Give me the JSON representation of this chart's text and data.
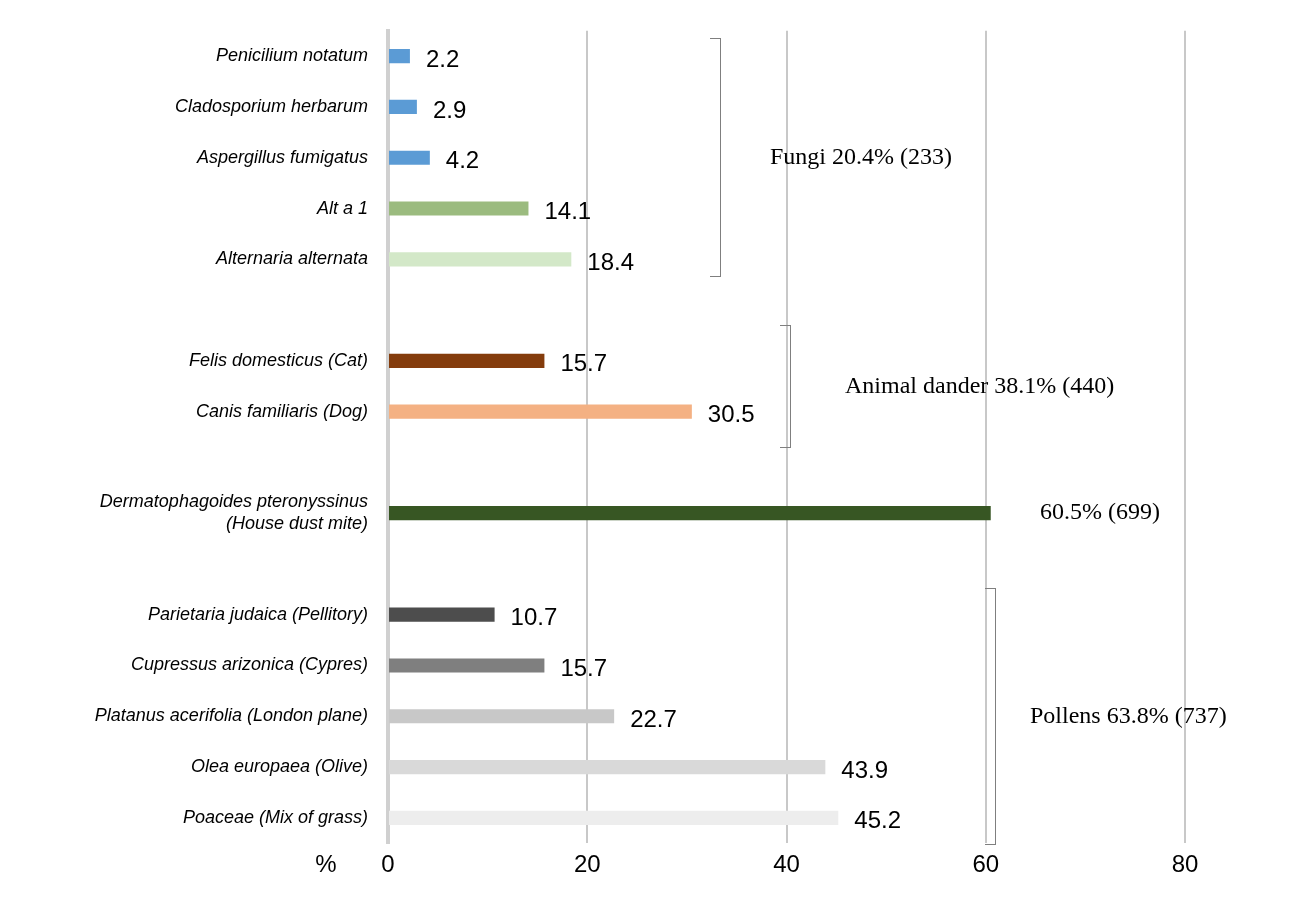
{
  "chart_data": {
    "type": "bar",
    "orientation": "horizontal",
    "categories": [
      "Penicilium notatum",
      "Cladosporium herbarum",
      "Aspergillus fumigatus",
      "Alt a 1",
      "Alternaria alternata",
      null,
      "Felis domesticus (Cat)",
      "Canis familiaris (Dog)",
      null,
      "Dermatophagoides pteronyssinus (House dust mite)",
      null,
      "Parietaria judaica (Pellitory)",
      "Cupressus arizonica (Cypres)",
      "Platanus acerifolia (London plane)",
      "Olea europaea (Olive)",
      "Poaceae (Mix of grass)"
    ],
    "values": [
      2.2,
      2.9,
      4.2,
      14.1,
      18.4,
      null,
      15.7,
      30.5,
      null,
      60.5,
      null,
      10.7,
      15.7,
      22.7,
      43.9,
      45.2
    ],
    "colors": [
      "#5b9bd5",
      "#5b9bd5",
      "#5b9bd5",
      "#9bbb7f",
      "#d3e8c8",
      "#ffffff",
      "#843c0c",
      "#f4b183",
      "#ffffff",
      "#375623",
      "#ffffff",
      "#4d4d4d",
      "#7f7f7f",
      "#c8c8c8",
      "#d9d9d9",
      "#ededed"
    ],
    "value_labels": [
      "2.2",
      "2.9",
      "4.2",
      "14.1",
      "18.4",
      null,
      "15.7",
      "30.5",
      null,
      null,
      null,
      "10.7",
      "15.7",
      "22.7",
      "43.9",
      "45.2"
    ],
    "xlabel": "%",
    "xlim": [
      0,
      80
    ],
    "xticks": [
      0,
      20,
      40,
      60,
      80
    ],
    "grid": "x",
    "annotations": [
      "Fungi 20.4% (233)",
      "Animal dander 38.1% (440)",
      "60.5% (699)",
      "Pollens 63.8% (737)"
    ]
  }
}
